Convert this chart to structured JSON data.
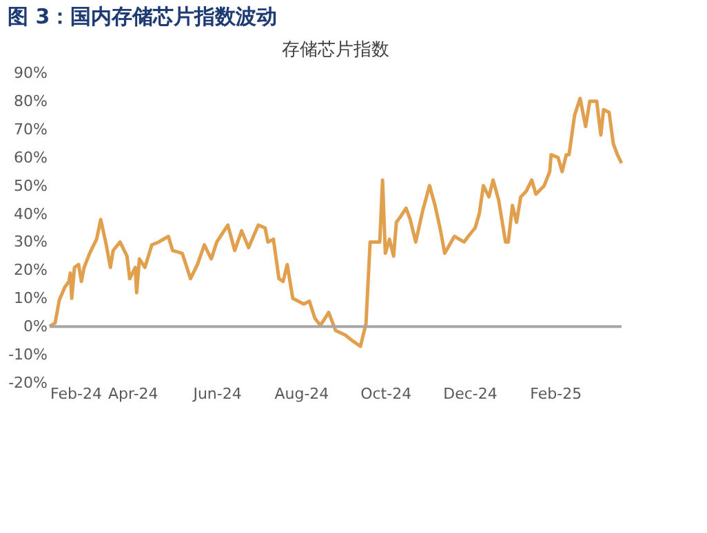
{
  "chart_data": {
    "type": "line",
    "title": "图 3：国内存储芯片指数波动",
    "subtitle": "存储芯片指数",
    "x": [
      "2024-02-01",
      "2024-02-05",
      "2024-02-08",
      "2024-02-12",
      "2024-02-15",
      "2024-02-16",
      "2024-02-17",
      "2024-02-19",
      "2024-02-22",
      "2024-02-24",
      "2024-02-26",
      "2024-03-01",
      "2024-03-06",
      "2024-03-09",
      "2024-03-13",
      "2024-03-16",
      "2024-03-18",
      "2024-03-23",
      "2024-03-28",
      "2024-03-30",
      "2024-04-03",
      "2024-04-04",
      "2024-04-06",
      "2024-04-10",
      "2024-04-15",
      "2024-04-20",
      "2024-04-27",
      "2024-04-30",
      "2024-05-07",
      "2024-05-13",
      "2024-05-18",
      "2024-05-23",
      "2024-05-28",
      "2024-06-01",
      "2024-06-09",
      "2024-06-14",
      "2024-06-19",
      "2024-06-24",
      "2024-07-01",
      "2024-07-06",
      "2024-07-08",
      "2024-07-12",
      "2024-07-16",
      "2024-07-19",
      "2024-07-22",
      "2024-07-26",
      "2024-08-03",
      "2024-08-07",
      "2024-08-11",
      "2024-08-15",
      "2024-08-21",
      "2024-08-26",
      "2024-09-02",
      "2024-09-07",
      "2024-09-13",
      "2024-09-17",
      "2024-09-20",
      "2024-09-27",
      "2024-09-29",
      "2024-10-01",
      "2024-10-04",
      "2024-10-07",
      "2024-10-09",
      "2024-10-12",
      "2024-10-16",
      "2024-10-19",
      "2024-10-23",
      "2024-10-28",
      "2024-11-02",
      "2024-11-06",
      "2024-11-10",
      "2024-11-13",
      "2024-11-20",
      "2024-11-27",
      "2024-11-30",
      "2024-12-05",
      "2024-12-08",
      "2024-12-11",
      "2024-12-15",
      "2024-12-18",
      "2024-12-22",
      "2024-12-27",
      "2024-12-29",
      "2025-01-01",
      "2025-01-04",
      "2025-01-07",
      "2025-01-11",
      "2025-01-15",
      "2025-01-18",
      "2025-01-24",
      "2025-01-28",
      "2025-01-29",
      "2025-02-03",
      "2025-02-06",
      "2025-02-09",
      "2025-02-11",
      "2025-02-15",
      "2025-02-19",
      "2025-02-23",
      "2025-02-26",
      "2025-03-03",
      "2025-03-06",
      "2025-03-08",
      "2025-03-12",
      "2025-03-15",
      "2025-03-18",
      "2025-03-21"
    ],
    "series": [
      {
        "color": "#e0a04e",
        "values": [
          0,
          1.3,
          9.4,
          14,
          16,
          19,
          10,
          21,
          22,
          16,
          21,
          26,
          31,
          38,
          29,
          21,
          27,
          30,
          25,
          17,
          21,
          12,
          24,
          21,
          29,
          30,
          32,
          27,
          26,
          17,
          22,
          29,
          24,
          30,
          36,
          27,
          34,
          28,
          36,
          35,
          30,
          31,
          17,
          16,
          22,
          10,
          8,
          9,
          3,
          0.4,
          5,
          -1.4,
          -3,
          -5,
          -7,
          1,
          30,
          30,
          52,
          26,
          31,
          25,
          37,
          39,
          42,
          38,
          30,
          41,
          50,
          43,
          34,
          26,
          32,
          30,
          32,
          35,
          40,
          50,
          46,
          52,
          45,
          30,
          30,
          43,
          37,
          46,
          48,
          52,
          47,
          50,
          55,
          61,
          60,
          55,
          61,
          61,
          75,
          81,
          71,
          80,
          80,
          68,
          77,
          76,
          65,
          61,
          58
        ]
      }
    ],
    "xlim": [
      "2024-02-01",
      "2025-03-21"
    ],
    "xticks": [
      {
        "value": "2024-02-01",
        "label": "Feb-24"
      },
      {
        "value": "2024-04-01",
        "label": "Apr-24"
      },
      {
        "value": "2024-06-01",
        "label": "Jun-24"
      },
      {
        "value": "2024-08-01",
        "label": "Aug-24"
      },
      {
        "value": "2024-10-01",
        "label": "Oct-24"
      },
      {
        "value": "2024-12-01",
        "label": "Dec-24"
      },
      {
        "value": "2025-02-01",
        "label": "Feb-25"
      }
    ],
    "ylim": [
      -20,
      90
    ],
    "yticks": [
      {
        "value": -20,
        "label": "-20%"
      },
      {
        "value": -10,
        "label": "-10%"
      },
      {
        "value": 0,
        "label": "0%"
      },
      {
        "value": 10,
        "label": "10%"
      },
      {
        "value": 20,
        "label": "20%"
      },
      {
        "value": 30,
        "label": "30%"
      },
      {
        "value": 40,
        "label": "40%"
      },
      {
        "value": 50,
        "label": "50%"
      },
      {
        "value": 60,
        "label": "60%"
      },
      {
        "value": 70,
        "label": "70%"
      },
      {
        "value": 80,
        "label": "80%"
      },
      {
        "value": 90,
        "label": "90%"
      }
    ],
    "ref_lines": [
      {
        "axis": "y",
        "value": 0,
        "color": "#a6a6a6"
      }
    ],
    "grid": false,
    "marker": "none",
    "line_style": "solid"
  }
}
